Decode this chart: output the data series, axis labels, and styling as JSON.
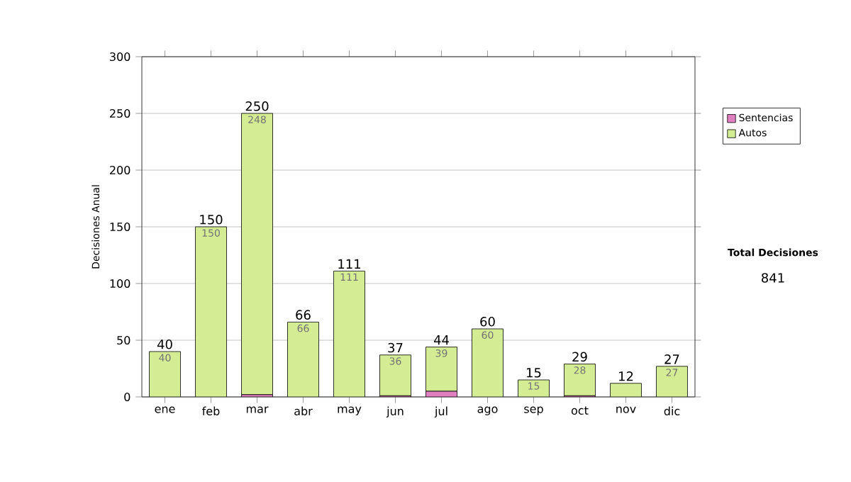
{
  "chart_data": {
    "type": "bar",
    "stacked": true,
    "categories": [
      "ene",
      "feb",
      "mar",
      "abr",
      "may",
      "jun",
      "jul",
      "ago",
      "sep",
      "oct",
      "nov",
      "dic"
    ],
    "series": [
      {
        "name": "Sentencias",
        "color": "#e080c0",
        "values": [
          0,
          0,
          2,
          0,
          0,
          1,
          5,
          0,
          0,
          1,
          0,
          0
        ]
      },
      {
        "name": "Autos",
        "color": "#d4ec94",
        "values": [
          40,
          150,
          248,
          66,
          111,
          36,
          39,
          60,
          15,
          28,
          12,
          27
        ],
        "value_labels": [
          "40",
          "150",
          "248",
          "66",
          "111",
          "36",
          "39",
          "60",
          "15",
          "28",
          null,
          "27"
        ]
      }
    ],
    "totals": [
      "40",
      "150",
      "250",
      "66",
      "111",
      "37",
      "44",
      "60",
      "15",
      "29",
      "12",
      "27"
    ],
    "ylabel": "Decisiones Anual",
    "ylim": [
      0,
      300
    ],
    "yticks": [
      0,
      50,
      100,
      150,
      200,
      250,
      300
    ],
    "grid": "y",
    "legend": "right",
    "annotations": [
      "Total Decisiones",
      "841"
    ]
  }
}
